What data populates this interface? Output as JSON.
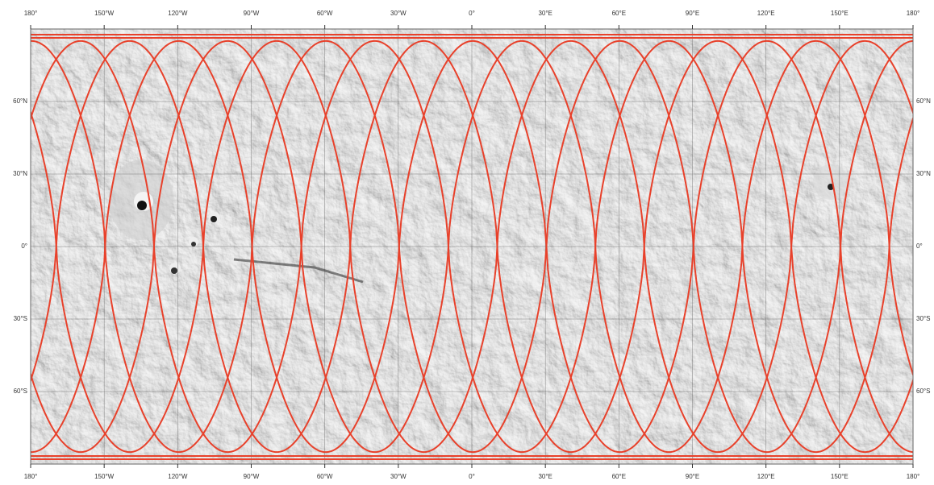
{
  "map": {
    "lon_labels": [
      "180°",
      "150°W",
      "120°W",
      "90°W",
      "60°W",
      "30°W",
      "0°",
      "30°E",
      "60°E",
      "90°E",
      "120°E",
      "150°E",
      "180°"
    ],
    "lat_labels": [
      "60°N",
      "30°N",
      "0°",
      "30°S",
      "60°S"
    ]
  }
}
